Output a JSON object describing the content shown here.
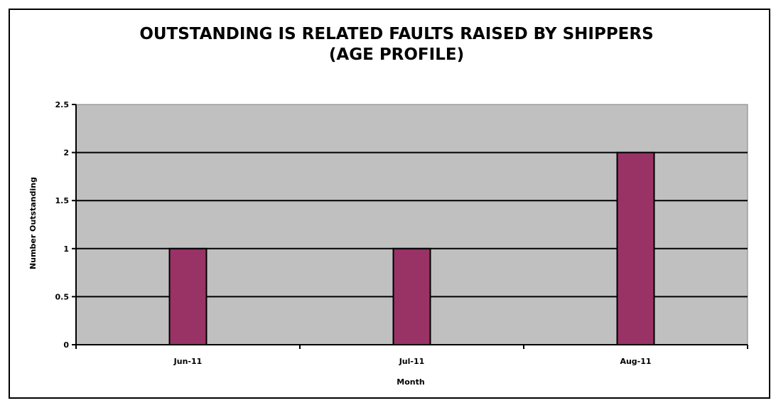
{
  "chart_data": {
    "type": "bar",
    "title": "OUTSTANDING IS RELATED FAULTS RAISED BY SHIPPERS",
    "subtitle": "(AGE PROFILE)",
    "xlabel": "Month",
    "ylabel": "Number Outstanding",
    "categories": [
      "Jun-11",
      "Jul-11",
      "Aug-11"
    ],
    "values": [
      1,
      1,
      2
    ],
    "ylim": [
      0,
      2.5
    ],
    "yticks": [
      0,
      0.5,
      1,
      1.5,
      2,
      2.5
    ],
    "ytick_labels": [
      "0",
      "0.5",
      "1",
      "1.5",
      "2",
      "2.5"
    ],
    "grid": true,
    "legend": "none",
    "colors": {
      "bar": "#993366",
      "plot_background": "#c0c0c0",
      "gridline": "#000000"
    }
  }
}
